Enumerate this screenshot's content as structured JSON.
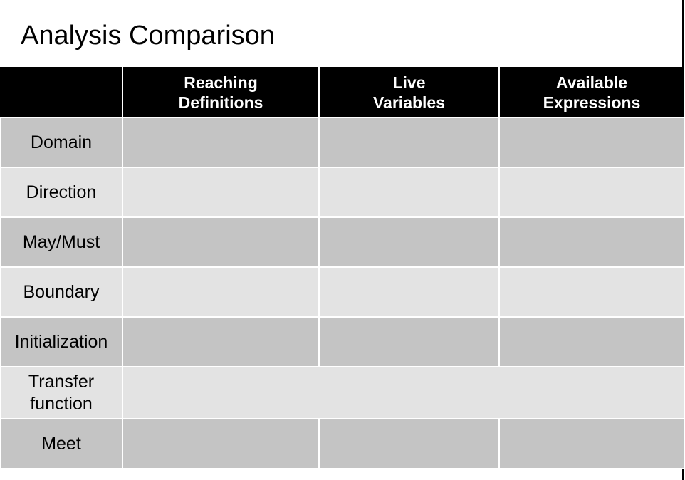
{
  "title": "Analysis Comparison",
  "table": {
    "headers": [
      "",
      "Reaching\nDefinitions",
      "Live\nVariables",
      "Available\nExpressions"
    ],
    "rows": [
      {
        "label": "Domain",
        "cells": [
          "",
          "",
          ""
        ]
      },
      {
        "label": "Direction",
        "cells": [
          "",
          "",
          ""
        ]
      },
      {
        "label": "May/Must",
        "cells": [
          "",
          "",
          ""
        ]
      },
      {
        "label": "Boundary",
        "cells": [
          "",
          "",
          ""
        ]
      },
      {
        "label": "Initialization",
        "cells": [
          "",
          "",
          ""
        ]
      },
      {
        "label": "Transfer\nfunction",
        "cells": [
          ""
        ]
      },
      {
        "label": "Meet",
        "cells": [
          "",
          "",
          ""
        ]
      }
    ]
  },
  "colors": {
    "header_bg": "#000000",
    "header_text": "#ffffff",
    "row_dark": "#c4c4c4",
    "row_light": "#e3e3e3"
  }
}
